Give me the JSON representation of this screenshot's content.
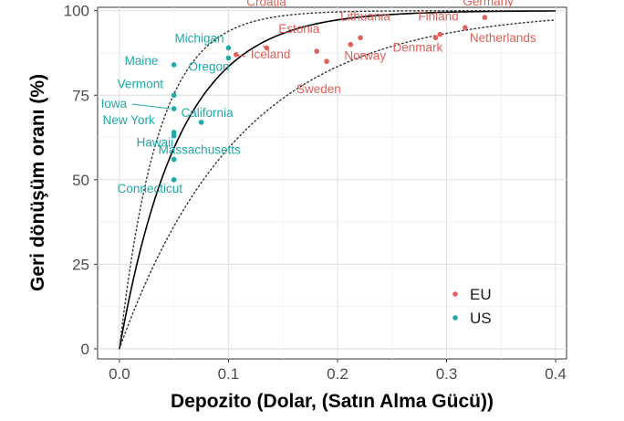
{
  "chart_data": {
    "type": "scatter",
    "title": "",
    "xlabel": "Depozito (Dolar, (Satın Alma Gücü))",
    "ylabel": "Geri dönüşüm oranı (%)",
    "xlim": [
      -0.02,
      0.41
    ],
    "ylim": [
      -3,
      101
    ],
    "xticks": [
      0.0,
      0.1,
      0.2,
      0.3,
      0.4
    ],
    "xtick_labels": [
      "0.0",
      "0.1",
      "0.2",
      "0.3",
      "0.4"
    ],
    "yticks": [
      0,
      25,
      50,
      75,
      100
    ],
    "ytick_labels": [
      "0",
      "25",
      "50",
      "75",
      "100"
    ],
    "grid": true,
    "legend_position": "bottom-right",
    "series": [
      {
        "name": "EU",
        "color": "#e0605a",
        "points": [
          {
            "label": "Croatia",
            "x": 0.135,
            "y": 89
          },
          {
            "label": "Iceland",
            "x": 0.107,
            "y": 87
          },
          {
            "label": "Estonia",
            "x": 0.181,
            "y": 88
          },
          {
            "label": "Lithuania",
            "x": 0.221,
            "y": 92
          },
          {
            "label": "Norway",
            "x": 0.212,
            "y": 90
          },
          {
            "label": "Sweden",
            "x": 0.19,
            "y": 85
          },
          {
            "label": "Finland",
            "x": 0.294,
            "y": 93
          },
          {
            "label": "Germany",
            "x": 0.335,
            "y": 98
          },
          {
            "label": "Netherlands",
            "x": 0.317,
            "y": 95
          },
          {
            "label": "Denmark",
            "x": 0.29,
            "y": 92
          }
        ]
      },
      {
        "name": "US",
        "color": "#20a8a8",
        "points": [
          {
            "label": "Michigan",
            "x": 0.1,
            "y": 89
          },
          {
            "label": "Oregon",
            "x": 0.1,
            "y": 86
          },
          {
            "label": "Maine",
            "x": 0.05,
            "y": 84
          },
          {
            "label": "Vermont",
            "x": 0.05,
            "y": 75
          },
          {
            "label": "Iowa",
            "x": 0.05,
            "y": 71
          },
          {
            "label": "California",
            "x": 0.075,
            "y": 67
          },
          {
            "label": "New York",
            "x": 0.05,
            "y": 64
          },
          {
            "label": "Hawaii",
            "x": 0.05,
            "y": 63
          },
          {
            "label": "Massachusetts",
            "x": 0.05,
            "y": 56
          },
          {
            "label": "Connecticut",
            "x": 0.05,
            "y": 50
          }
        ]
      }
    ],
    "fit_curves": [
      {
        "style": "solid",
        "color": "#000000",
        "rate": 18
      },
      {
        "style": "dotted",
        "color": "#333333",
        "rate": 28
      },
      {
        "style": "dotted",
        "color": "#333333",
        "rate": 9
      }
    ],
    "legend": [
      {
        "name": "EU",
        "color": "#e0605a"
      },
      {
        "name": "US",
        "color": "#20a8a8"
      }
    ]
  }
}
